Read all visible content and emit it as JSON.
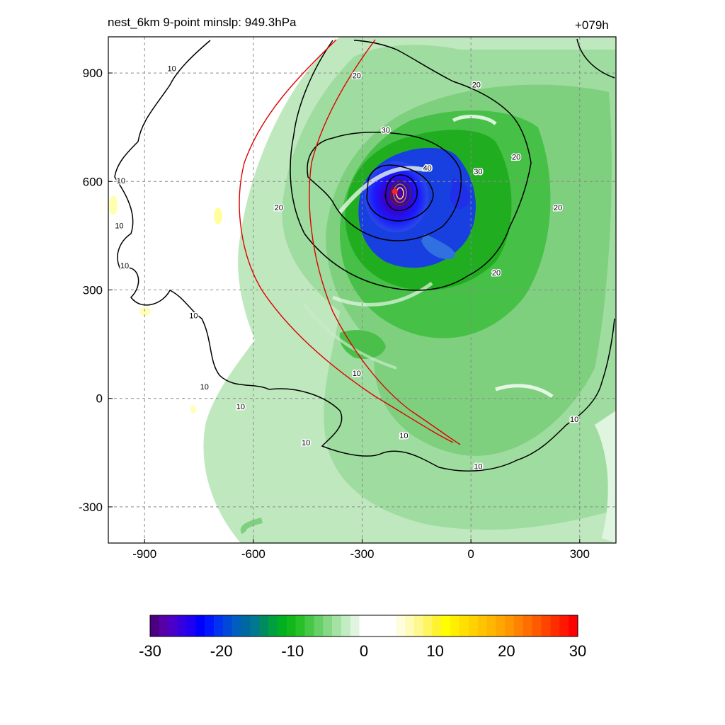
{
  "chart_data": {
    "type": "heatmap",
    "title_left": "nest_6km  9-point minslp: 949.3hPa",
    "title_right": "+079h",
    "x_range": [
      -1000,
      400
    ],
    "y_range": [
      -400,
      1000
    ],
    "x_ticks": [
      -900,
      -600,
      -300,
      0,
      300
    ],
    "y_ticks": [
      -300,
      0,
      300,
      600,
      900
    ],
    "x_tick_labels": [
      "-900",
      "-600",
      "-300",
      "0",
      "300"
    ],
    "y_tick_labels": [
      "-300",
      "0",
      "300",
      "600",
      "900"
    ],
    "grid": "dashed",
    "storm_center": {
      "x": -210,
      "y": 572
    },
    "contour_levels": [
      10,
      20,
      30,
      40
    ],
    "contour_labels": [
      {
        "text": "10",
        "x": -825,
        "y": 905
      },
      {
        "text": "10",
        "x": -965,
        "y": 595
      },
      {
        "text": "10",
        "x": -970,
        "y": 470
      },
      {
        "text": "10",
        "x": -955,
        "y": 360
      },
      {
        "text": "10",
        "x": -765,
        "y": 222
      },
      {
        "text": "10",
        "x": -735,
        "y": 25
      },
      {
        "text": "10",
        "x": -635,
        "y": -30
      },
      {
        "text": "10",
        "x": -455,
        "y": -130
      },
      {
        "text": "10",
        "x": -315,
        "y": 62
      },
      {
        "text": "10",
        "x": -185,
        "y": -110
      },
      {
        "text": "10",
        "x": 20,
        "y": -195
      },
      {
        "text": "10",
        "x": 285,
        "y": -65
      },
      {
        "text": "20",
        "x": -530,
        "y": 520
      },
      {
        "text": "20",
        "x": 15,
        "y": 860
      },
      {
        "text": "20",
        "x": 125,
        "y": 660
      },
      {
        "text": "20",
        "x": 240,
        "y": 520
      },
      {
        "text": "20",
        "x": 70,
        "y": 340
      },
      {
        "text": "20",
        "x": -315,
        "y": 885
      },
      {
        "text": "30",
        "x": -235,
        "y": 735
      },
      {
        "text": "30",
        "x": 20,
        "y": 620
      },
      {
        "text": "40",
        "x": -120,
        "y": 630
      }
    ],
    "colorbar": {
      "min": -30,
      "max": 30,
      "ticks": [
        -30,
        -20,
        -10,
        0,
        10,
        20,
        30
      ],
      "tick_labels": [
        "-30",
        "-20",
        "-10",
        "0",
        "10",
        "20",
        "30"
      ],
      "colors": [
        "#4b0082",
        "#5800a8",
        "#4a00c8",
        "#3500e0",
        "#2000f0",
        "#0000ff",
        "#0016ff",
        "#0032f0",
        "#0048d8",
        "#005ebe",
        "#0068a0",
        "#007890",
        "#008a60",
        "#00a040",
        "#00b020",
        "#12b81a",
        "#28c028",
        "#46c846",
        "#66d066",
        "#86d886",
        "#a4e2a4",
        "#c2ecc2",
        "#dff5df",
        "#ffffff",
        "#ffffff",
        "#ffffff",
        "#ffffff",
        "#fffde0",
        "#fffbb8",
        "#fff890",
        "#fff560",
        "#fff230",
        "#ffff00",
        "#ffee00",
        "#ffe000",
        "#ffd200",
        "#ffc400",
        "#ffb600",
        "#ffa600",
        "#ff9600",
        "#ff8200",
        "#ff6e00",
        "#ff5a00",
        "#ff4400",
        "#ff2e00",
        "#ff1800",
        "#ff0000"
      ]
    }
  }
}
